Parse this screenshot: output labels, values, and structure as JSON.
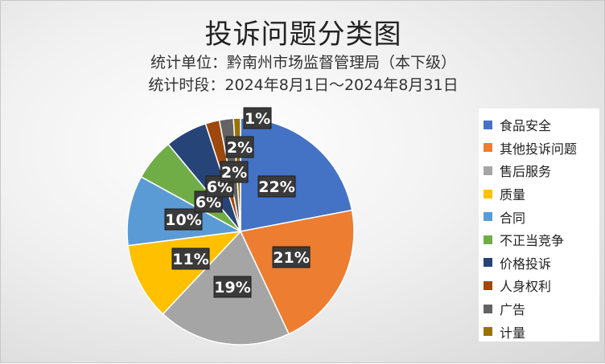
{
  "chart_data": {
    "type": "pie",
    "title": "投诉问题分类图",
    "subtitles": [
      "统计单位：黔南州市场监督管理局（本下级）",
      "统计时段：2024年8月1日～2024年8月31日"
    ],
    "legend_position": "right",
    "categories": [
      "食品安全",
      "其他投诉问题",
      "售后服务",
      "质量",
      "合同",
      "不正当竞争",
      "价格投诉",
      "人身权利",
      "广告",
      "计量"
    ],
    "values": [
      22,
      21,
      19,
      11,
      10,
      6,
      6,
      2,
      2,
      1
    ],
    "labels": [
      "22%",
      "21%",
      "19%",
      "11%",
      "10%",
      "6%",
      "6%",
      "2%",
      "2%",
      "1%"
    ],
    "colors": [
      "#4472C4",
      "#ED7D31",
      "#A5A5A5",
      "#FFC000",
      "#5B9BD5",
      "#70AD47",
      "#264478",
      "#9E480E",
      "#636363",
      "#997300"
    ]
  }
}
